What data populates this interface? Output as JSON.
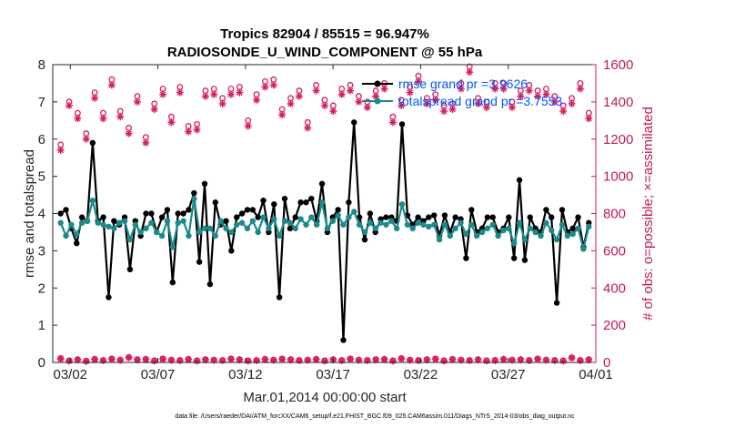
{
  "chart_data": {
    "type": "line",
    "title": "Tropics 82904 / 85515 = 96.947%",
    "subtitle": "RADIOSONDE_U_WIND_COMPONENT @ 55 hPa",
    "xlabel": "Mar.01,2014 00:00:00 start",
    "ylabel": "rmse and totalspread",
    "ylabel_right": "# of obs: o=possible; ×=assimilated",
    "footnote": "data file: /Users/raeder/DAI/ATM_forcXX/CAM6_setup/f.e21.FHIST_BGC.f09_025.CAM6assim.011/Diags_NTrS_2014-03/obs_diag_output.nc",
    "x_ticks": [
      {
        "value": 1.5,
        "label": "03/02"
      },
      {
        "value": 6.5,
        "label": "03/07"
      },
      {
        "value": 11.5,
        "label": "03/12"
      },
      {
        "value": 16.5,
        "label": "03/17"
      },
      {
        "value": 21.5,
        "label": "03/22"
      },
      {
        "value": 26.5,
        "label": "03/27"
      },
      {
        "value": 31.5,
        "label": "04/01"
      }
    ],
    "xlim": [
      0.5,
      31.5
    ],
    "ylim": [
      0,
      8
    ],
    "ylim_right": [
      0,
      1600
    ],
    "y_ticks": [
      "0",
      "1",
      "2",
      "3",
      "4",
      "5",
      "6",
      "7",
      "8"
    ],
    "y_ticks_right": [
      "0",
      "200",
      "400",
      "600",
      "800",
      "1000",
      "1200",
      "1400",
      "1600"
    ],
    "legend": [
      "rmse grand pr =3.9626",
      "totalspread grand pr =3.7553"
    ],
    "series": [
      {
        "name": "rmse",
        "color": "#000000",
        "values": [
          4.0,
          4.1,
          3.6,
          3.2,
          3.9,
          3.8,
          5.9,
          3.8,
          3.9,
          1.75,
          3.8,
          3.7,
          3.9,
          2.5,
          3.8,
          3.4,
          4.0,
          4.0,
          3.5,
          3.9,
          4.1,
          2.15,
          4.0,
          4.0,
          4.1,
          4.55,
          2.7,
          4.8,
          2.1,
          4.3,
          3.7,
          3.8,
          3.0,
          3.9,
          4.0,
          4.1,
          4.1,
          3.9,
          4.35,
          3.5,
          4.25,
          1.75,
          4.4,
          3.6,
          3.9,
          4.3,
          4.3,
          4.4,
          3.8,
          4.8,
          3.5,
          3.9,
          4.1,
          0.6,
          4.3,
          6.45,
          3.9,
          3.3,
          4.0,
          3.5,
          3.85,
          3.9,
          3.9,
          3.8,
          6.4,
          3.95,
          3.7,
          3.9,
          3.8,
          3.9,
          3.95,
          3.4,
          3.95,
          3.5,
          3.9,
          3.85,
          2.8,
          4.1,
          3.5,
          3.6,
          3.9,
          3.9,
          3.5,
          3.6,
          3.9,
          2.8,
          4.9,
          2.75,
          3.9,
          3.6,
          3.5,
          4.1,
          3.9,
          1.6,
          4.1,
          3.5,
          3.6,
          3.9,
          3.1,
          3.75
        ]
      },
      {
        "name": "totalspread",
        "color": "#1a8a8a",
        "values": [
          3.75,
          3.4,
          3.7,
          3.45,
          3.75,
          3.8,
          4.35,
          3.75,
          3.7,
          3.65,
          3.6,
          3.75,
          3.8,
          3.3,
          3.7,
          3.5,
          3.6,
          3.75,
          3.5,
          3.4,
          3.8,
          3.1,
          3.75,
          3.8,
          3.4,
          4.4,
          3.5,
          3.6,
          3.6,
          3.4,
          3.8,
          3.6,
          3.5,
          3.7,
          3.75,
          3.6,
          3.8,
          3.5,
          3.9,
          3.6,
          3.85,
          3.4,
          3.8,
          3.75,
          3.6,
          3.85,
          3.7,
          3.9,
          3.7,
          4.3,
          3.6,
          3.8,
          3.95,
          3.7,
          3.9,
          4.05,
          3.7,
          3.5,
          3.75,
          3.6,
          3.75,
          3.7,
          3.8,
          3.6,
          4.25,
          3.7,
          3.6,
          3.75,
          3.7,
          3.65,
          3.7,
          3.3,
          3.7,
          3.4,
          3.6,
          3.75,
          3.45,
          3.7,
          3.4,
          3.5,
          3.6,
          3.7,
          3.4,
          3.55,
          3.6,
          3.2,
          3.75,
          3.3,
          3.6,
          3.5,
          3.4,
          3.75,
          3.55,
          3.3,
          3.7,
          3.4,
          3.45,
          3.6,
          3.05,
          3.65
        ]
      },
      {
        "name": "possible",
        "color": "#d81b60",
        "marker": "circle",
        "values": [
          1170,
          1400,
          1340,
          1230,
          1450,
          1340,
          1520,
          1350,
          1260,
          1430,
          1210,
          1390,
          1470,
          1320,
          1480,
          1270,
          1280,
          1460,
          1470,
          1420,
          1470,
          1480,
          1300,
          1440,
          1510,
          1520,
          1360,
          1420,
          1460,
          1290,
          1490,
          1410,
          1380,
          1470,
          1490,
          1430,
          1400,
          1460,
          1500,
          1320,
          1410,
          1480,
          1540,
          1420,
          1440,
          1380,
          1390,
          1500,
          1590,
          1420,
          1400,
          1500,
          1500,
          1400,
          1460,
          1490,
          1460,
          1470,
          1430,
          1380,
          1420,
          1500,
          1340
        ]
      },
      {
        "name": "assimilated",
        "color": "#d81b60",
        "marker": "asterisk",
        "values": [
          1140,
          1380,
          1310,
          1200,
          1420,
          1310,
          1490,
          1320,
          1230,
          1400,
          1180,
          1360,
          1440,
          1290,
          1450,
          1240,
          1250,
          1430,
          1440,
          1390,
          1440,
          1450,
          1270,
          1410,
          1480,
          1490,
          1330,
          1390,
          1430,
          1260,
          1460,
          1380,
          1350,
          1440,
          1460,
          1400,
          1370,
          1430,
          1470,
          1290,
          1380,
          1450,
          1510,
          1390,
          1410,
          1350,
          1360,
          1470,
          1560,
          1390,
          1370,
          1470,
          1470,
          1370,
          1430,
          1460,
          1430,
          1440,
          1400,
          1350,
          1390,
          1470,
          1310
        ]
      },
      {
        "name": "possible_low",
        "color": "#d81b60",
        "marker": "circle",
        "values": [
          22,
          10,
          16,
          8,
          18,
          12,
          20,
          14,
          28,
          16,
          18,
          10,
          20,
          14,
          12,
          18,
          10,
          16,
          14,
          12,
          20,
          16,
          10,
          12,
          18,
          14,
          20,
          16,
          12,
          14,
          18,
          10,
          16,
          12,
          20,
          14,
          12,
          16,
          18,
          10,
          22,
          14,
          12,
          16,
          20,
          10,
          18,
          14,
          12,
          16,
          10,
          12,
          18,
          14,
          16,
          12,
          20,
          14,
          12,
          10,
          26,
          12,
          16
        ]
      },
      {
        "name": "assimilated_low",
        "color": "#d81b60",
        "marker": "asterisk",
        "values": [
          20,
          8,
          14,
          6,
          16,
          10,
          18,
          12,
          26,
          14,
          16,
          8,
          18,
          12,
          10,
          16,
          8,
          14,
          12,
          10,
          18,
          14,
          8,
          10,
          16,
          12,
          18,
          14,
          10,
          12,
          16,
          8,
          14,
          10,
          18,
          12,
          10,
          14,
          16,
          8,
          20,
          12,
          10,
          14,
          18,
          8,
          16,
          12,
          10,
          14,
          8,
          10,
          16,
          12,
          14,
          10,
          18,
          12,
          10,
          8,
          24,
          10,
          14
        ]
      }
    ]
  }
}
